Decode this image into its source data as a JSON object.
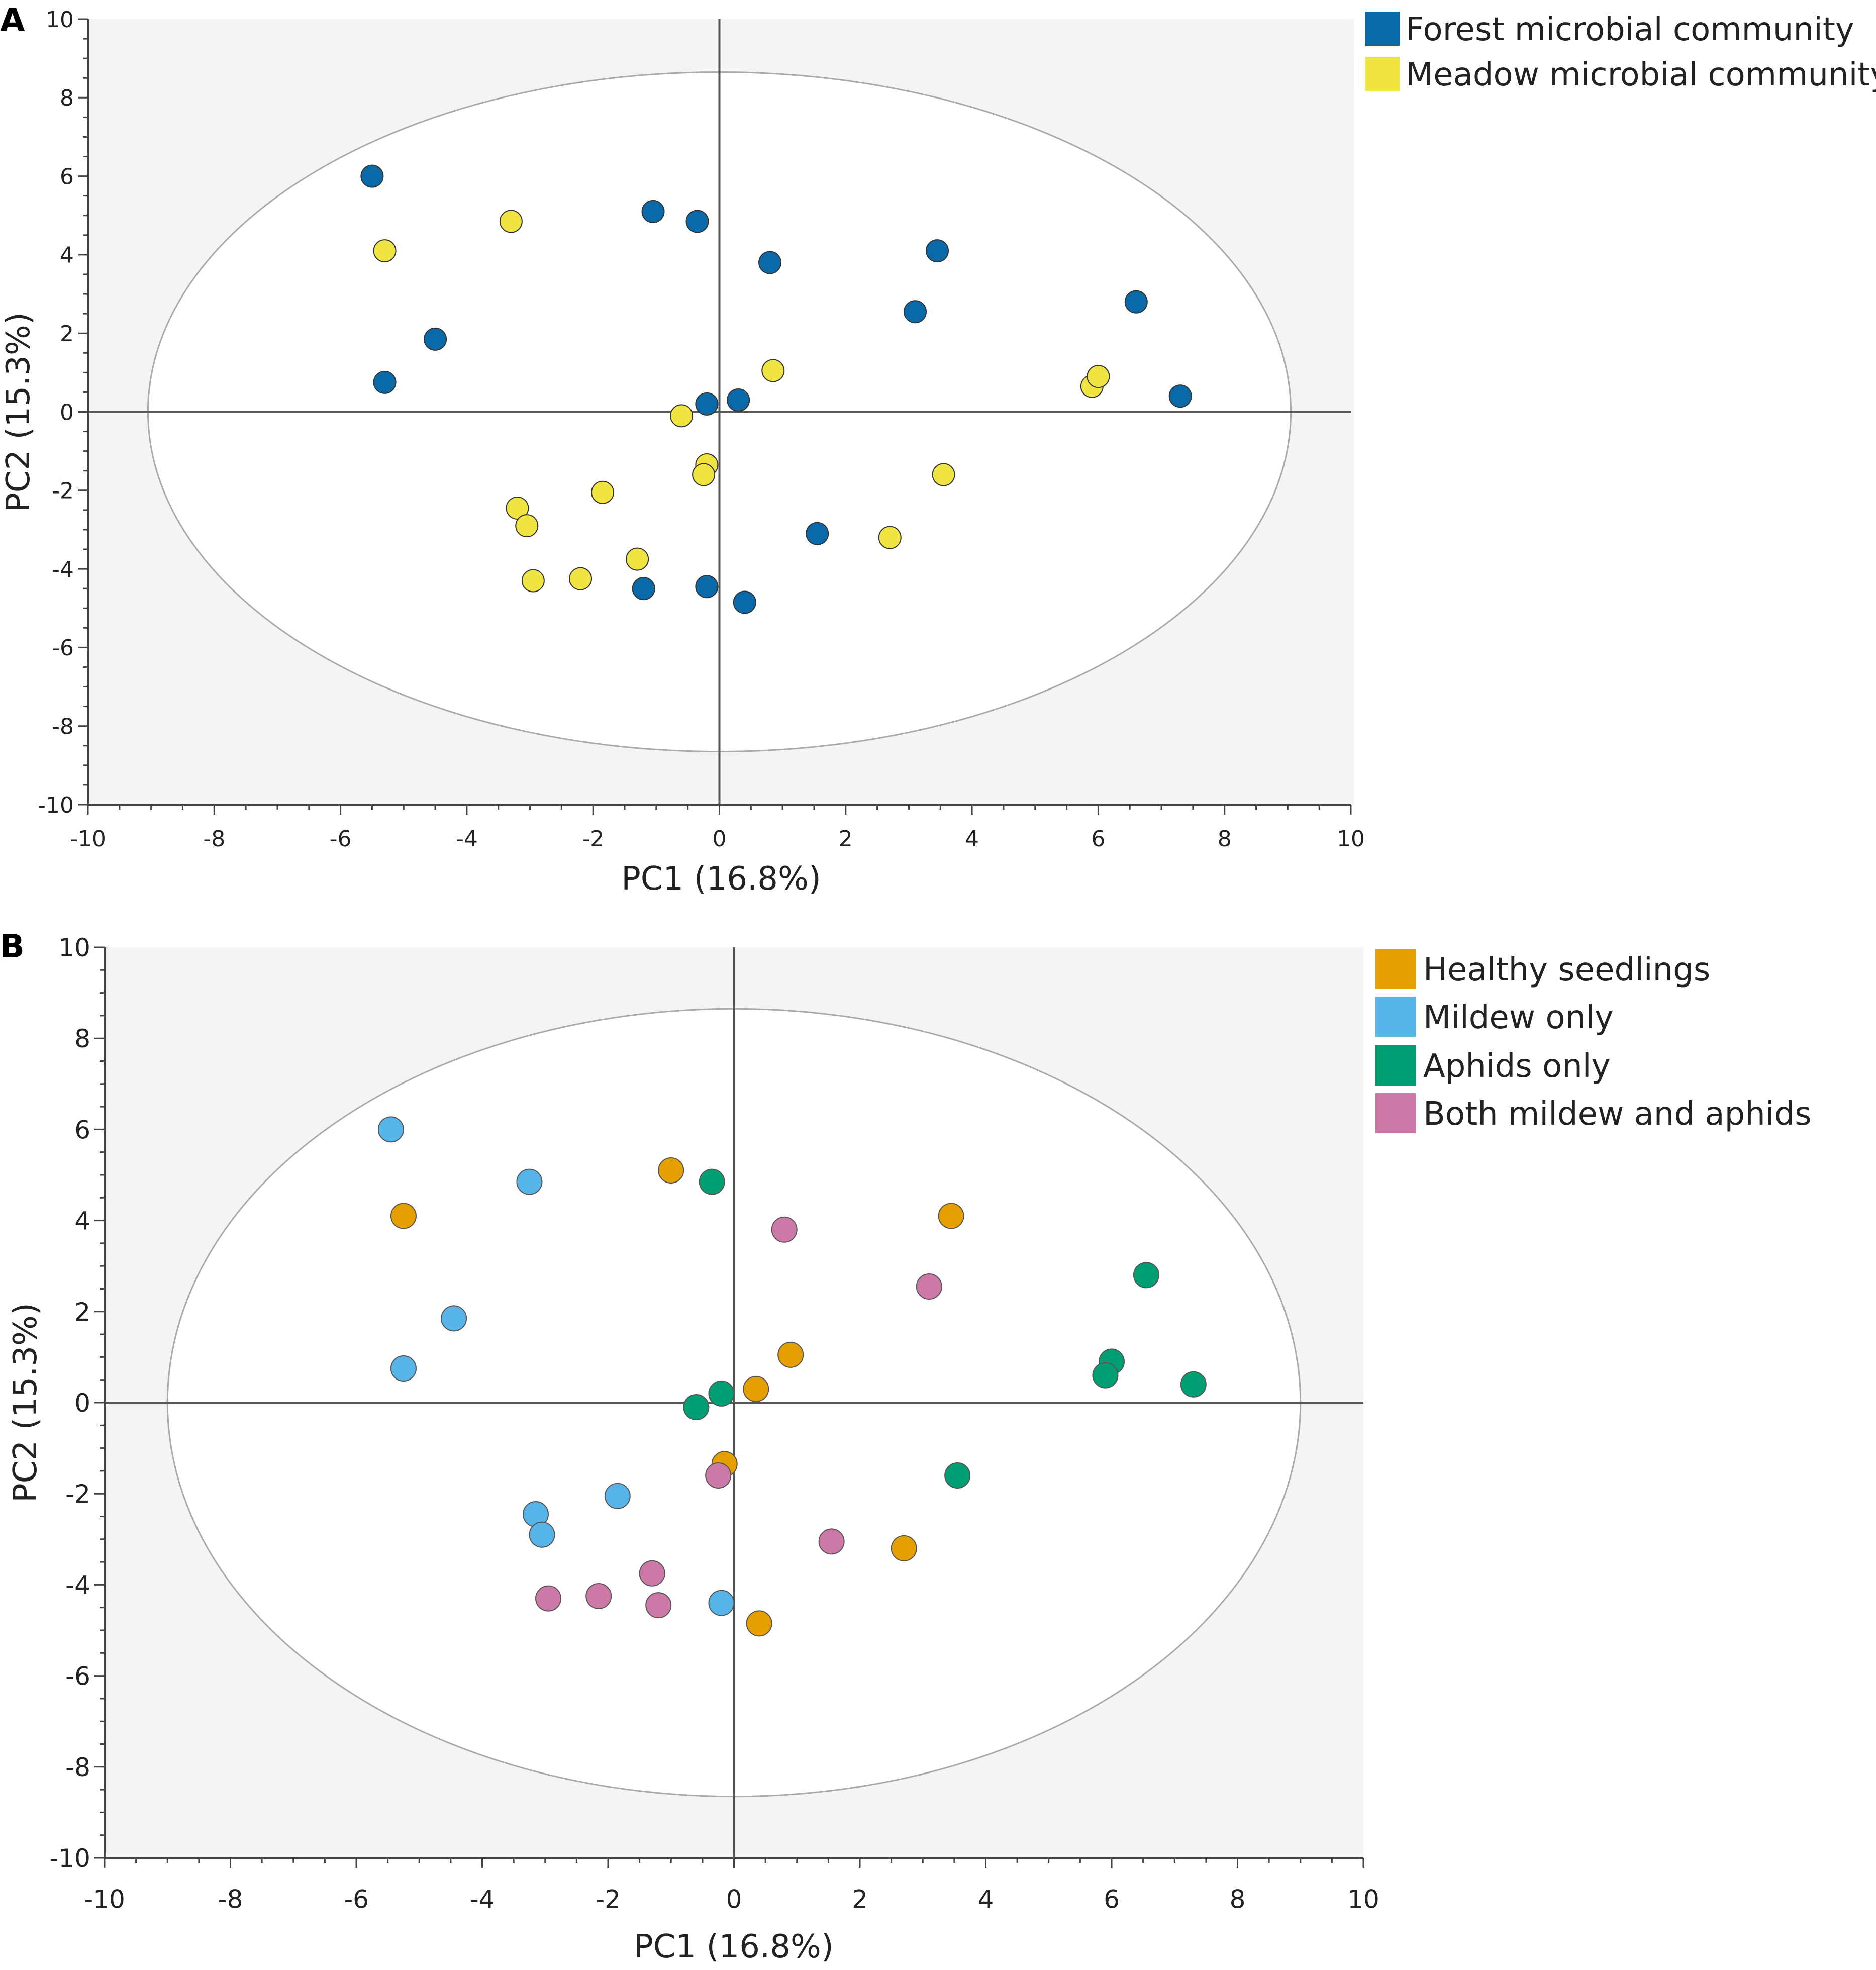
{
  "figure": {
    "panels": [
      {
        "id": "A",
        "label": "A",
        "xlabel": "PC1 (16.8%)",
        "ylabel": "PC2 (15.3%)",
        "legend": [
          {
            "name": "Forest microbial community",
            "color": "#0a6aa9"
          },
          {
            "name": "Meadow microbial community",
            "color": "#f0e442"
          }
        ]
      },
      {
        "id": "B",
        "label": "B",
        "xlabel": "PC1 (16.8%)",
        "ylabel": "PC2 (15.3%)",
        "legend": [
          {
            "name": "Healthy seedlings",
            "color": "#e69f00"
          },
          {
            "name": "Mildew only",
            "color": "#56b4e9"
          },
          {
            "name": "Aphids only",
            "color": "#009e73"
          },
          {
            "name": "Both mildew and aphids",
            "color": "#cc79a7"
          }
        ]
      }
    ]
  },
  "chart_data": [
    {
      "panel": "A",
      "type": "scatter",
      "title": "",
      "xlabel": "PC1 (16.8%)",
      "ylabel": "PC2 (15.3%)",
      "xlim": [
        -10,
        10
      ],
      "ylim": [
        -10,
        10
      ],
      "xticks": [
        "-10",
        "-8",
        "-6",
        "-4",
        "-2",
        "0",
        "2",
        "4",
        "6",
        "8",
        "10"
      ],
      "yticks": [
        "10",
        "8",
        "6",
        "4",
        "2",
        "0",
        "-2",
        "-4",
        "-6",
        "-8",
        "-10"
      ],
      "confidence_ellipse": {
        "center": [
          0,
          0
        ],
        "semi_axes": [
          9.05,
          8.65
        ]
      },
      "reference_lines": {
        "x": 0,
        "y": 0
      },
      "legend_position": "top-right",
      "series": [
        {
          "name": "Forest microbial community",
          "color": "#0a6aa9",
          "points": [
            [
              -5.5,
              6.0
            ],
            [
              -1.05,
              5.1
            ],
            [
              -0.35,
              4.85
            ],
            [
              0.8,
              3.8
            ],
            [
              3.45,
              4.1
            ],
            [
              3.1,
              2.55
            ],
            [
              6.6,
              2.8
            ],
            [
              -4.5,
              1.85
            ],
            [
              -5.3,
              0.75
            ],
            [
              -0.2,
              0.2
            ],
            [
              0.3,
              0.3
            ],
            [
              7.3,
              0.4
            ],
            [
              1.55,
              -3.1
            ],
            [
              -1.2,
              -4.5
            ],
            [
              -0.2,
              -4.45
            ],
            [
              0.4,
              -4.85
            ]
          ]
        },
        {
          "name": "Meadow microbial community",
          "color": "#f0e442",
          "points": [
            [
              -5.3,
              4.1
            ],
            [
              -3.3,
              4.85
            ],
            [
              0.85,
              1.05
            ],
            [
              5.9,
              0.65
            ],
            [
              6.0,
              0.9
            ],
            [
              -0.6,
              -0.1
            ],
            [
              -0.2,
              -1.35
            ],
            [
              -0.25,
              -1.6
            ],
            [
              3.55,
              -1.6
            ],
            [
              -1.85,
              -2.05
            ],
            [
              -3.2,
              -2.45
            ],
            [
              -3.05,
              -2.9
            ],
            [
              -1.3,
              -3.75
            ],
            [
              2.7,
              -3.2
            ],
            [
              -2.95,
              -4.3
            ],
            [
              -2.2,
              -4.25
            ]
          ]
        }
      ]
    },
    {
      "panel": "B",
      "type": "scatter",
      "title": "",
      "xlabel": "PC1 (16.8%)",
      "ylabel": "PC2 (15.3%)",
      "xlim": [
        -10,
        10
      ],
      "ylim": [
        -10,
        10
      ],
      "xticks": [
        "-10",
        "-8",
        "-6",
        "-4",
        "-2",
        "0",
        "2",
        "4",
        "6",
        "8",
        "10"
      ],
      "yticks": [
        "10",
        "8",
        "6",
        "4",
        "2",
        "0",
        "-2",
        "-4",
        "-6",
        "-8",
        "-10"
      ],
      "confidence_ellipse": {
        "center": [
          0,
          0
        ],
        "semi_axes": [
          9.0,
          8.65
        ]
      },
      "reference_lines": {
        "x": 0,
        "y": 0
      },
      "legend_position": "top-right",
      "series": [
        {
          "name": "Healthy seedlings",
          "color": "#e69f00",
          "points": [
            [
              -5.25,
              4.1
            ],
            [
              -1.0,
              5.1
            ],
            [
              3.45,
              4.1
            ],
            [
              0.9,
              1.05
            ],
            [
              0.35,
              0.3
            ],
            [
              -0.15,
              -1.35
            ],
            [
              2.7,
              -3.2
            ],
            [
              0.4,
              -4.85
            ]
          ]
        },
        {
          "name": "Mildew only",
          "color": "#56b4e9",
          "points": [
            [
              -5.45,
              6.0
            ],
            [
              -3.25,
              4.85
            ],
            [
              -4.45,
              1.85
            ],
            [
              -5.25,
              0.75
            ],
            [
              -1.85,
              -2.05
            ],
            [
              -3.15,
              -2.45
            ],
            [
              -3.05,
              -2.9
            ],
            [
              -0.2,
              -4.4
            ]
          ]
        },
        {
          "name": "Aphids only",
          "color": "#009e73",
          "points": [
            [
              -0.35,
              4.85
            ],
            [
              6.55,
              2.8
            ],
            [
              6.0,
              0.9
            ],
            [
              5.9,
              0.6
            ],
            [
              7.3,
              0.4
            ],
            [
              -0.2,
              0.2
            ],
            [
              -0.6,
              -0.1
            ],
            [
              3.55,
              -1.6
            ]
          ]
        },
        {
          "name": "Both mildew and aphids",
          "color": "#cc79a7",
          "points": [
            [
              0.8,
              3.8
            ],
            [
              3.1,
              2.55
            ],
            [
              -0.25,
              -1.6
            ],
            [
              1.55,
              -3.05
            ],
            [
              -1.3,
              -3.75
            ],
            [
              -2.95,
              -4.3
            ],
            [
              -2.15,
              -4.25
            ],
            [
              -1.2,
              -4.45
            ]
          ]
        }
      ]
    }
  ]
}
